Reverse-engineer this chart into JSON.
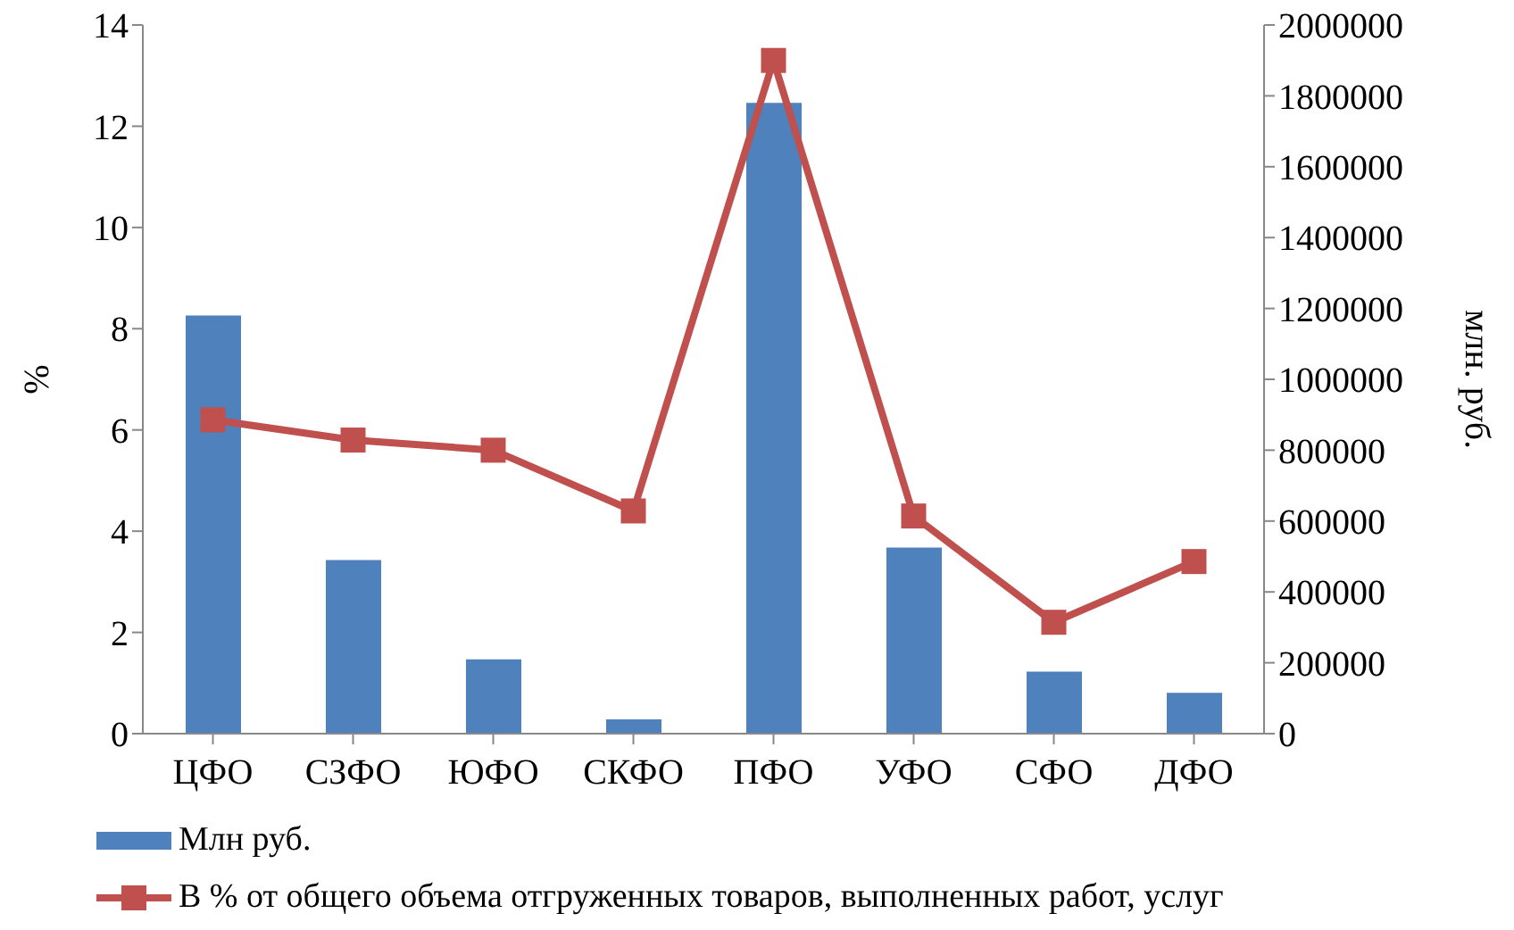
{
  "chart_data": {
    "type": "bar",
    "categories": [
      "ЦФО",
      "СЗФО",
      "ЮФО",
      "СКФО",
      "ПФО",
      "УФО",
      "СФО",
      "ДФО"
    ],
    "ylabel": "%",
    "y2label": "млн. руб.",
    "ylim": [
      0,
      14
    ],
    "yticks": [
      0,
      2,
      4,
      6,
      8,
      10,
      12,
      14
    ],
    "y2lim": [
      0,
      2000000
    ],
    "y2ticks": [
      0,
      200000,
      400000,
      600000,
      800000,
      1000000,
      1200000,
      1400000,
      1600000,
      1800000,
      2000000
    ],
    "grid": false,
    "legend": "bottom",
    "series": [
      {
        "name": "Млн руб.",
        "axis": "y2",
        "color": "#4f81bd",
        "values": [
          1180000,
          490000,
          210000,
          40000,
          1780000,
          525000,
          175000,
          115000
        ]
      },
      {
        "name": "В % от общего объема отгруженных товаров, выполненных работ, услуг",
        "type": "line",
        "color": "#c0504d",
        "marker": "square",
        "values": [
          6.2,
          5.8,
          5.6,
          4.4,
          13.3,
          4.3,
          2.2,
          3.4
        ]
      }
    ]
  }
}
